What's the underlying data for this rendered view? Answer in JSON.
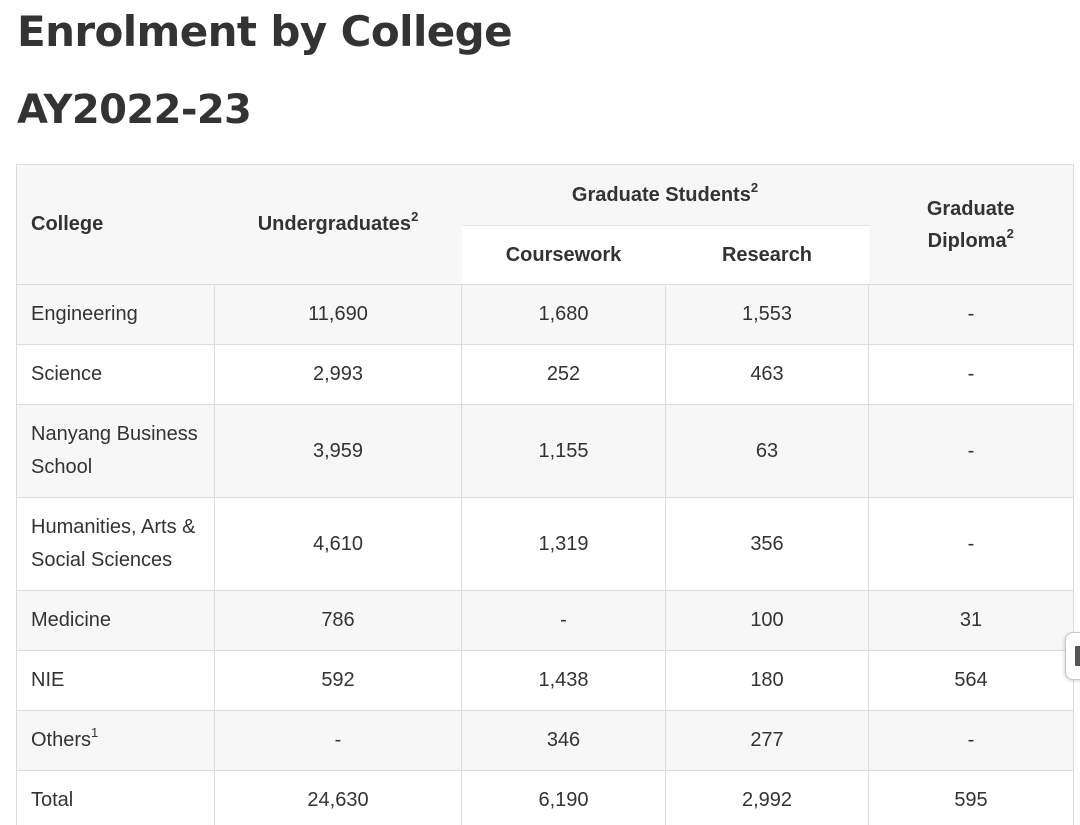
{
  "title": "Enrolment by College",
  "subtitle": "AY2022-23",
  "table": {
    "headers": {
      "college": "College",
      "undergraduates": "Undergraduates",
      "undergraduates_note": "2",
      "graduate_students": "Graduate Students",
      "graduate_students_note": "2",
      "coursework": "Coursework",
      "research": "Research",
      "graduate_diploma_line1": "Graduate",
      "graduate_diploma_line2": "Diploma",
      "graduate_diploma_note": "2"
    },
    "rows": [
      {
        "college": "Engineering",
        "ug": "11,690",
        "coursework": "1,680",
        "research": "1,553",
        "diploma": "-"
      },
      {
        "college": "Science",
        "ug": "2,993",
        "coursework": "252",
        "research": "463",
        "diploma": "-"
      },
      {
        "college_line1": "Nanyang Business",
        "college_line2": "School",
        "ug": "3,959",
        "coursework": "1,155",
        "research": "63",
        "diploma": "-"
      },
      {
        "college_line1": "Humanities, Arts &",
        "college_line2": "Social Sciences",
        "ug": "4,610",
        "coursework": "1,319",
        "research": "356",
        "diploma": "-"
      },
      {
        "college": "Medicine",
        "ug": "786",
        "coursework": "-",
        "research": "100",
        "diploma": "31"
      },
      {
        "college": "NIE",
        "ug": "592",
        "coursework": "1,438",
        "research": "180",
        "diploma": "564"
      },
      {
        "college": "Others",
        "college_note": "1",
        "ug": "-",
        "coursework": "346",
        "research": "277",
        "diploma": "-"
      },
      {
        "college": "Total",
        "ug": "24,630",
        "coursework": "6,190",
        "research": "2,992",
        "diploma": "595"
      }
    ]
  }
}
